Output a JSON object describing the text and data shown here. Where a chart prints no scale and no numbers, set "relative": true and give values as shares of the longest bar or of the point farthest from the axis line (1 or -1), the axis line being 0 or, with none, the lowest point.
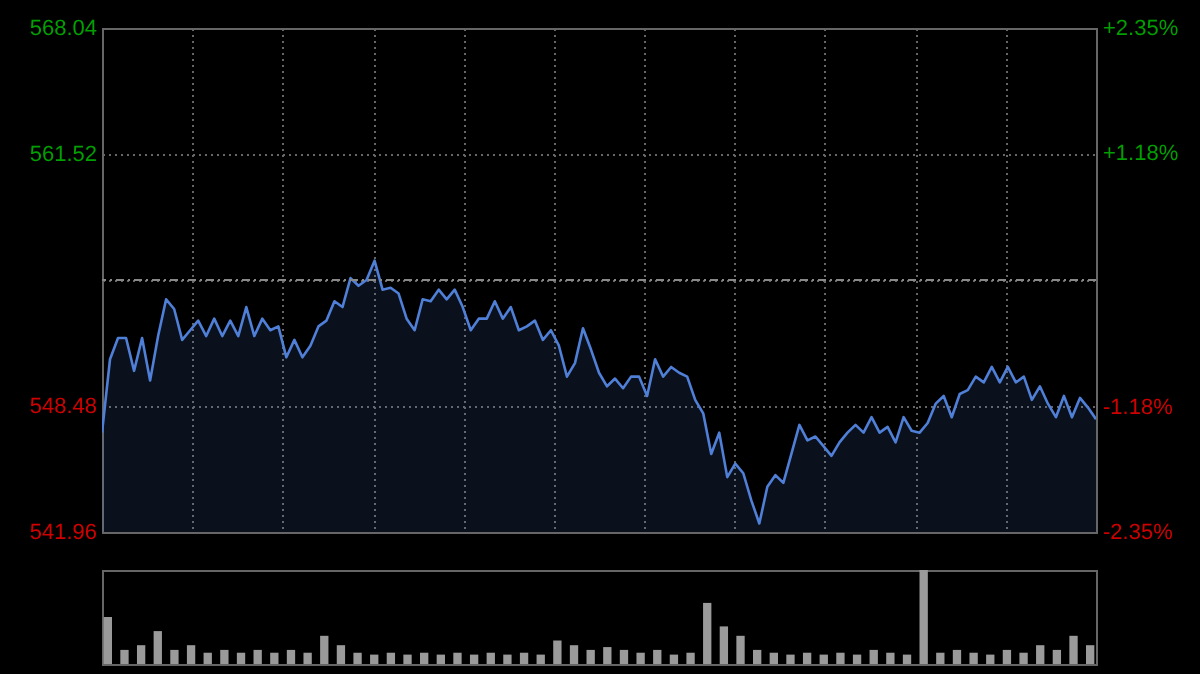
{
  "chart_data": [
    {
      "type": "area",
      "categories": [
        null,
        null,
        null,
        null,
        null,
        null,
        null,
        null,
        null,
        null,
        null,
        null,
        null,
        null,
        null,
        null,
        null,
        null,
        null,
        null,
        null,
        null,
        null,
        null,
        null,
        null,
        null,
        null,
        null,
        null,
        null,
        null,
        null,
        null,
        null,
        null,
        null,
        null,
        null,
        null,
        null,
        null,
        null,
        null,
        null,
        null,
        null,
        null,
        null,
        null,
        null,
        null,
        null,
        null,
        null,
        null,
        null,
        null,
        null,
        null,
        null,
        null,
        null,
        null,
        null,
        null,
        null,
        null,
        null,
        null,
        null,
        null,
        null,
        null,
        null,
        null,
        null,
        null,
        null,
        null,
        null,
        null,
        null,
        null,
        null,
        null,
        null,
        null,
        null,
        null,
        null,
        null,
        null,
        null,
        null,
        null,
        null,
        null,
        null,
        null,
        null,
        null,
        null,
        null,
        null,
        null,
        null,
        null,
        null,
        null,
        null,
        null,
        null,
        null,
        null,
        null,
        null,
        null,
        null,
        null,
        null,
        null,
        null,
        null,
        null
      ],
      "series": [
        {
          "color": "#4f7fd6",
          "values": [
            547.1,
            550.9,
            552.0,
            552.0,
            550.3,
            552.0,
            549.8,
            552.1,
            554.0,
            553.5,
            551.9,
            552.4,
            552.9,
            552.1,
            553.0,
            552.1,
            552.9,
            552.1,
            553.6,
            552.1,
            553.0,
            552.4,
            552.6,
            551.0,
            551.9,
            551.0,
            551.6,
            552.6,
            552.9,
            553.9,
            553.6,
            555.1,
            554.7,
            555.0,
            556.0,
            554.5,
            554.6,
            554.3,
            553.0,
            552.4,
            554.0,
            553.9,
            554.5,
            554.0,
            554.5,
            553.6,
            552.4,
            553.0,
            553.0,
            553.9,
            553.0,
            553.6,
            552.4,
            552.6,
            552.9,
            551.9,
            552.4,
            551.6,
            550.0,
            550.7,
            552.5,
            551.4,
            550.2,
            549.5,
            549.9,
            549.4,
            550.0,
            550.0,
            549.0,
            550.9,
            550.0,
            550.5,
            550.2,
            550.0,
            548.8,
            548.1,
            546.0,
            547.1,
            544.8,
            545.5,
            545.0,
            543.6,
            542.4,
            544.3,
            544.9,
            544.5,
            546.0,
            547.5,
            546.7,
            546.9,
            546.4,
            545.9,
            546.6,
            547.1,
            547.5,
            547.1,
            547.9,
            547.1,
            547.4,
            546.6,
            547.9,
            547.2,
            547.1,
            547.6,
            548.6,
            549.0,
            547.9,
            549.1,
            549.3,
            550.0,
            549.7,
            550.5,
            549.7,
            550.5,
            549.7,
            550.0,
            548.8,
            549.5,
            548.6,
            547.9,
            549.0,
            547.9,
            548.9,
            548.4,
            547.8
          ]
        }
      ],
      "ylim": [
        541.96,
        568.04
      ],
      "yticks": [
        541.96,
        548.48,
        {
          "value": 555.0,
          "label": null
        },
        561.52,
        568.04
      ],
      "y2lim": [
        -2.35,
        2.35
      ],
      "y2ticks": [
        {
          "value": -2.35,
          "label": "-2.35%"
        },
        {
          "value": -1.18,
          "label": "-1.18%"
        },
        {
          "value": 0,
          "label": null
        },
        {
          "value": 1.18,
          "label": "+1.18%"
        },
        {
          "value": 2.35,
          "label": "+2.35%"
        }
      ],
      "ref_lines": [
        {
          "axis": "y2",
          "value": 0,
          "color": "#888888",
          "line_style": "dashed"
        }
      ],
      "grid": true
    },
    {
      "type": "bar",
      "relative": true,
      "color": "#9a9a9a",
      "categories": [
        null,
        null,
        null,
        null,
        null,
        null,
        null,
        null,
        null,
        null,
        null,
        null,
        null,
        null,
        null,
        null,
        null,
        null,
        null,
        null,
        null,
        null,
        null,
        null,
        null,
        null,
        null,
        null,
        null,
        null,
        null,
        null,
        null,
        null,
        null,
        null,
        null,
        null,
        null,
        null,
        null,
        null,
        null,
        null,
        null,
        null,
        null,
        null,
        null,
        null,
        null,
        null,
        null,
        null,
        null,
        null,
        null,
        null,
        null,
        null
      ],
      "values": [
        0.5,
        0.15,
        0.2,
        0.35,
        0.15,
        0.2,
        0.12,
        0.15,
        0.12,
        0.15,
        0.12,
        0.15,
        0.12,
        0.3,
        0.2,
        0.12,
        0.1,
        0.12,
        0.1,
        0.12,
        0.1,
        0.12,
        0.1,
        0.12,
        0.1,
        0.12,
        0.1,
        0.25,
        0.2,
        0.15,
        0.18,
        0.15,
        0.12,
        0.15,
        0.1,
        0.12,
        0.65,
        0.4,
        0.3,
        0.15,
        0.12,
        0.1,
        0.12,
        0.1,
        0.12,
        0.1,
        0.15,
        0.12,
        0.1,
        1.0,
        0.12,
        0.15,
        0.12,
        0.1,
        0.15,
        0.12,
        0.2,
        0.15,
        0.3,
        0.2
      ]
    }
  ]
}
